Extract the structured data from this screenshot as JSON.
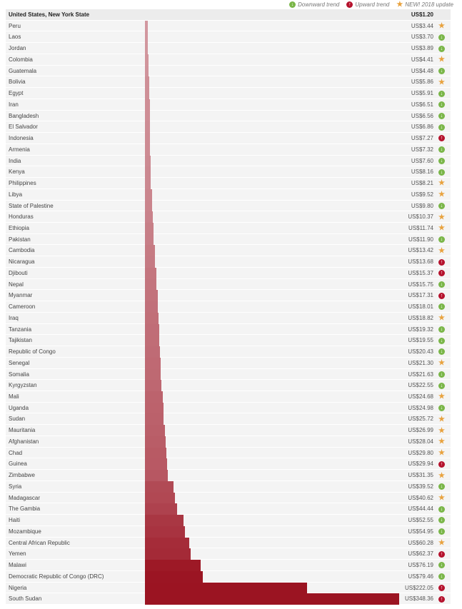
{
  "legend": {
    "down_label": "Downward trend",
    "up_label": "Upward trend",
    "new_label": "NEW! 2018 update"
  },
  "icons": {
    "down": "arrow-down-circle-icon",
    "up": "arrow-up-circle-icon",
    "new": "star-icon"
  },
  "colors": {
    "bar_light": "#dcb0b6",
    "bar_dark": "#9b1422",
    "trend_down": "#7ab648",
    "trend_up": "#b5122d",
    "trend_new": "#e8a13c"
  },
  "chart_data": {
    "type": "bar",
    "orientation": "horizontal",
    "categories": [
      "United States, New York State",
      "Peru",
      "Laos",
      "Jordan",
      "Colombia",
      "Guatemala",
      "Bolivia",
      "Egypt",
      "Iran",
      "Bangladesh",
      "El Salvador",
      "Indonesia",
      "Armenia",
      "India",
      "Kenya",
      "Philippines",
      "Libya",
      "State of Palestine",
      "Honduras",
      "Ethiopia",
      "Pakistan",
      "Cambodia",
      "Nicaragua",
      "Djibouti",
      "Nepal",
      "Myanmar",
      "Cameroon",
      "Iraq",
      "Tanzania",
      "Tajikistan",
      "Republic of Congo",
      "Senegal",
      "Somalia",
      "Kyrgyzstan",
      "Mali",
      "Uganda",
      "Sudan",
      "Mauritania",
      "Afghanistan",
      "Chad",
      "Guinea",
      "Zimbabwe",
      "Syria",
      "Madagascar",
      "The Gambia",
      "Haiti",
      "Mozambique",
      "Central African Republic",
      "Yemen",
      "Malawi",
      "Democratic Republic of Congo (DRC)",
      "Nigeria",
      "South Sudan"
    ],
    "values": [
      1.2,
      3.44,
      3.7,
      3.89,
      4.41,
      4.48,
      5.86,
      5.91,
      6.51,
      6.56,
      6.86,
      7.27,
      7.32,
      7.6,
      8.16,
      8.21,
      9.52,
      9.8,
      10.37,
      11.74,
      11.9,
      13.42,
      13.68,
      15.37,
      15.75,
      17.31,
      18.01,
      18.82,
      19.32,
      19.55,
      20.43,
      21.3,
      21.63,
      22.55,
      24.68,
      24.98,
      25.72,
      26.99,
      28.04,
      29.8,
      29.94,
      31.35,
      39.52,
      40.62,
      44.44,
      52.55,
      54.95,
      60.28,
      62.37,
      76.19,
      79.46,
      222.05,
      348.36
    ],
    "value_labels": [
      "US$1.20",
      "US$3.44",
      "US$3.70",
      "US$3.89",
      "US$4.41",
      "US$4.48",
      "US$5.86",
      "US$5.91",
      "US$6.51",
      "US$6.56",
      "US$6.86",
      "US$7.27",
      "US$7.32",
      "US$7.60",
      "US$8.16",
      "US$8.21",
      "US$9.52",
      "US$9.80",
      "US$10.37",
      "US$11.74",
      "US$11.90",
      "US$13.42",
      "US$13.68",
      "US$15.37",
      "US$15.75",
      "US$17.31",
      "US$18.01",
      "US$18.82",
      "US$19.32",
      "US$19.55",
      "US$20.43",
      "US$21.30",
      "US$21.63",
      "US$22.55",
      "US$24.68",
      "US$24.98",
      "US$25.72",
      "US$26.99",
      "US$28.04",
      "US$29.80",
      "US$29.94",
      "US$31.35",
      "US$39.52",
      "US$40.62",
      "US$44.44",
      "US$52.55",
      "US$54.95",
      "US$60.28",
      "US$62.37",
      "US$76.19",
      "US$79.46",
      "US$222.05",
      "US$348.36"
    ],
    "trends": [
      "",
      "new",
      "down",
      "down",
      "new",
      "down",
      "new",
      "down",
      "down",
      "down",
      "down",
      "up",
      "down",
      "down",
      "down",
      "new",
      "new",
      "down",
      "new",
      "new",
      "down",
      "new",
      "up",
      "up",
      "down",
      "up",
      "down",
      "new",
      "down",
      "down",
      "down",
      "new",
      "down",
      "down",
      "new",
      "down",
      "new",
      "new",
      "new",
      "new",
      "up",
      "new",
      "down",
      "new",
      "down",
      "down",
      "down",
      "new",
      "up",
      "down",
      "down",
      "up",
      "up"
    ],
    "xlim": [
      0,
      348.36
    ],
    "grid": false,
    "legend_position": "top-right"
  }
}
